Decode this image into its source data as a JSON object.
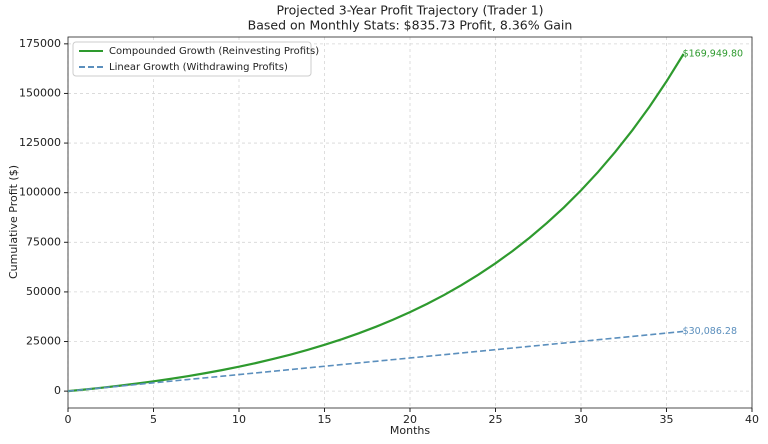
{
  "chart_data": {
    "type": "line",
    "title": "Projected 3-Year Profit Trajectory (Trader 1)",
    "subtitle": "Based on Monthly Stats: $835.73 Profit, 8.36% Gain",
    "x_label": "Months",
    "y_label": "Cumulative Profit ($)",
    "x": [
      0,
      1,
      2,
      3,
      4,
      5,
      6,
      7,
      8,
      9,
      10,
      11,
      12,
      13,
      14,
      15,
      16,
      17,
      18,
      19,
      20,
      21,
      22,
      23,
      24,
      25,
      26,
      27,
      28,
      29,
      30,
      31,
      32,
      33,
      34,
      35,
      36
    ],
    "series": [
      {
        "name": "Compounded Growth (Reinvesting Profits)",
        "color": "#2e9a2e",
        "dash": "solid",
        "values": [
          0,
          835.7,
          1741.4,
          2722.6,
          3784,
          4936,
          6185,
          7538,
          9005,
          10593,
          12315,
          14180,
          16202,
          18392,
          20765,
          23337,
          26124,
          29144,
          32416,
          35962,
          39804,
          43967,
          48479,
          53367,
          58665,
          64405,
          70625,
          77365,
          84668,
          92582,
          101158,
          110450,
          120520,
          131431,
          143254,
          156066,
          169949.8
        ],
        "value_labels": [
          null,
          null,
          null,
          null,
          null,
          null,
          null,
          null,
          null,
          null,
          null,
          null,
          null,
          null,
          null,
          null,
          null,
          null,
          null,
          null,
          null,
          null,
          null,
          null,
          null,
          null,
          null,
          null,
          null,
          null,
          null,
          null,
          null,
          null,
          null,
          null,
          "$169,949.80"
        ]
      },
      {
        "name": "Linear Growth (Withdrawing Profits)",
        "color": "#5b8fbd",
        "dash": "dashed",
        "values": [
          0,
          836,
          1671,
          2507,
          3343,
          4179,
          5014,
          5850,
          6686,
          7522,
          8357,
          9193,
          10029,
          10865,
          11700,
          12536,
          13372,
          14207,
          15043,
          15879,
          16715,
          17550,
          18386,
          19222,
          20058,
          20893,
          21729,
          22565,
          23400,
          24236,
          25072,
          25908,
          26743,
          27579,
          28415,
          29251,
          30086.28
        ],
        "value_labels": [
          null,
          null,
          null,
          null,
          null,
          null,
          null,
          null,
          null,
          null,
          null,
          null,
          null,
          null,
          null,
          null,
          null,
          null,
          null,
          null,
          null,
          null,
          null,
          null,
          null,
          null,
          null,
          null,
          null,
          null,
          null,
          null,
          null,
          null,
          null,
          null,
          "$30,086.28"
        ]
      }
    ],
    "xlim": [
      0,
      40
    ],
    "xticks": [
      0,
      5,
      10,
      15,
      20,
      25,
      30,
      35,
      40
    ],
    "ylim": [
      -8497,
      178447
    ],
    "yticks": [
      0,
      25000,
      50000,
      75000,
      100000,
      125000,
      150000,
      175000
    ],
    "grid": true,
    "legend": "upper left"
  }
}
